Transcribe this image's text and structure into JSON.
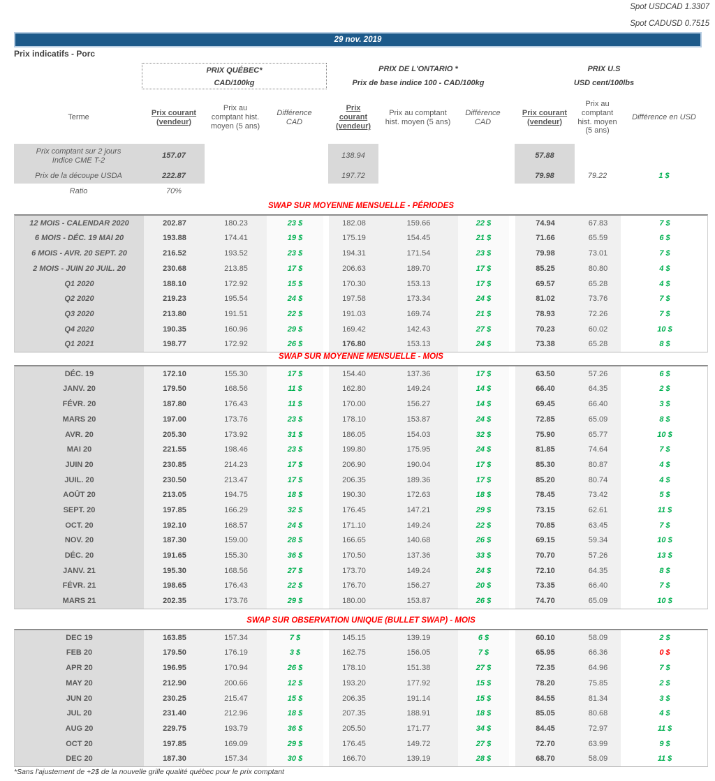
{
  "colors": {
    "header_bar_blue": "#1d5a8a",
    "positive_green": "#00b050",
    "negative_red": "#ff0000",
    "section_title_red": "#ff0000",
    "table_text_gray": "#595959",
    "terme_column_gray": "#dcdcdc",
    "price_column_gray": "#f0f0f0"
  },
  "topbar": {
    "spot_usdcad": "Spot USDCAD 1.3307",
    "spot_cadusd": "Spot CADUSD 0.7515",
    "date": "29 nov. 2019"
  },
  "page_title": "Prix indicatifs - Porc",
  "groups": {
    "quebec": {
      "title": "PRIX QUÉBEC*",
      "subtitle": "CAD/100kg"
    },
    "ontario": {
      "title": "PRIX DE L'ONTARIO *",
      "subtitle": "Prix de base indice 100 - CAD/100kg"
    },
    "us": {
      "title": "PRIX U.S",
      "subtitle": "USD cent/100lbs"
    }
  },
  "columns": {
    "terme": "Terme",
    "prix_courant": "Prix courant (vendeur)",
    "prix_comptant_hist": "Prix au comptant hist. moyen (5 ans)",
    "difference_cad": "Différence CAD",
    "difference_usd": "Différence en USD"
  },
  "spot_section": {
    "cme_row": {
      "label_line1": "Prix comptant sur 2 jours",
      "label_line2": "Indice CME T-2",
      "quebec": "157.07",
      "ontario": "138.94",
      "us": "57.88"
    },
    "usda_row": {
      "label": "Prix de la découpe USDA",
      "quebec": "222.87",
      "ontario": "197.72",
      "us": "79.98",
      "us_hist": "79.22",
      "us_diff": "1 $"
    },
    "ratio_row": {
      "label": "Ratio",
      "value": "70%"
    }
  },
  "sections": [
    {
      "title": "SWAP SUR MOYENNE MENSUELLE - PÉRIODES",
      "italic_terme": true,
      "rows": [
        {
          "terme": "12 MOIS - CALENDAR 2020",
          "qc": [
            "202.87",
            "180.23",
            "23 $"
          ],
          "on": [
            "182.08",
            "159.66",
            "22 $"
          ],
          "us": [
            "74.94",
            "67.83",
            "7 $"
          ]
        },
        {
          "terme": "6 MOIS -  DÉC. 19 MAI 20",
          "qc": [
            "193.88",
            "174.41",
            "19 $"
          ],
          "on": [
            "175.19",
            "154.45",
            "21 $"
          ],
          "us": [
            "71.66",
            "65.59",
            "6 $"
          ]
        },
        {
          "terme": "6 MOIS -  AVR. 20 SEPT. 20",
          "qc": [
            "216.52",
            "193.52",
            "23 $"
          ],
          "on": [
            "194.31",
            "171.54",
            "23 $"
          ],
          "us": [
            "79.98",
            "73.01",
            "7 $"
          ]
        },
        {
          "terme": "2 MOIS -  JUIN 20  JUIL. 20",
          "qc": [
            "230.68",
            "213.85",
            "17 $"
          ],
          "on": [
            "206.63",
            "189.70",
            "17 $"
          ],
          "us": [
            "85.25",
            "80.80",
            "4 $"
          ]
        },
        {
          "terme": "Q1 2020",
          "qc": [
            "188.10",
            "172.92",
            "15 $"
          ],
          "on": [
            "170.30",
            "153.13",
            "17 $"
          ],
          "us": [
            "69.57",
            "65.28",
            "4 $"
          ]
        },
        {
          "terme": "Q2 2020",
          "qc": [
            "219.23",
            "195.54",
            "24 $"
          ],
          "on": [
            "197.58",
            "173.34",
            "24 $"
          ],
          "us": [
            "81.02",
            "73.76",
            "7 $"
          ]
        },
        {
          "terme": "Q3 2020",
          "qc": [
            "213.80",
            "191.51",
            "22 $"
          ],
          "on": [
            "191.03",
            "169.74",
            "21 $"
          ],
          "us": [
            "78.93",
            "72.26",
            "7 $"
          ]
        },
        {
          "terme": "Q4 2020",
          "qc": [
            "190.35",
            "160.96",
            "29 $"
          ],
          "on": [
            "169.42",
            "142.43",
            "27 $"
          ],
          "us": [
            "70.23",
            "60.02",
            "10 $"
          ]
        },
        {
          "terme": "Q1 2021",
          "qc": [
            "198.77",
            "172.92",
            "26 $"
          ],
          "on": [
            "176.80",
            "153.13",
            "24 $"
          ],
          "us": [
            "73.38",
            "65.28",
            "8 $"
          ],
          "onBold": true
        }
      ]
    },
    {
      "title": "SWAP SUR MOYENNE MENSUELLE - MOIS",
      "italic_terme": false,
      "rows": [
        {
          "terme": "DÉC. 19",
          "qc": [
            "172.10",
            "155.30",
            "17 $"
          ],
          "on": [
            "154.40",
            "137.36",
            "17 $"
          ],
          "us": [
            "63.50",
            "57.26",
            "6 $"
          ]
        },
        {
          "terme": "JANV. 20",
          "qc": [
            "179.50",
            "168.56",
            "11 $"
          ],
          "on": [
            "162.80",
            "149.24",
            "14 $"
          ],
          "us": [
            "66.40",
            "64.35",
            "2 $"
          ]
        },
        {
          "terme": "FÉVR. 20",
          "qc": [
            "187.80",
            "176.43",
            "11 $"
          ],
          "on": [
            "170.00",
            "156.27",
            "14 $"
          ],
          "us": [
            "69.45",
            "66.40",
            "3 $"
          ]
        },
        {
          "terme": "MARS 20",
          "qc": [
            "197.00",
            "173.76",
            "23 $"
          ],
          "on": [
            "178.10",
            "153.87",
            "24 $"
          ],
          "us": [
            "72.85",
            "65.09",
            "8 $"
          ]
        },
        {
          "terme": "AVR. 20",
          "qc": [
            "205.30",
            "173.92",
            "31 $"
          ],
          "on": [
            "186.05",
            "154.03",
            "32 $"
          ],
          "us": [
            "75.90",
            "65.77",
            "10 $"
          ]
        },
        {
          "terme": "MAI 20",
          "qc": [
            "221.55",
            "198.46",
            "23 $"
          ],
          "on": [
            "199.80",
            "175.95",
            "24 $"
          ],
          "us": [
            "81.85",
            "74.64",
            "7 $"
          ]
        },
        {
          "terme": "JUIN 20",
          "qc": [
            "230.85",
            "214.23",
            "17 $"
          ],
          "on": [
            "206.90",
            "190.04",
            "17 $"
          ],
          "us": [
            "85.30",
            "80.87",
            "4 $"
          ]
        },
        {
          "terme": "JUIL. 20",
          "qc": [
            "230.50",
            "213.47",
            "17 $"
          ],
          "on": [
            "206.35",
            "189.36",
            "17 $"
          ],
          "us": [
            "85.20",
            "80.74",
            "4 $"
          ]
        },
        {
          "terme": "AOÛT 20",
          "qc": [
            "213.05",
            "194.75",
            "18 $"
          ],
          "on": [
            "190.30",
            "172.63",
            "18 $"
          ],
          "us": [
            "78.45",
            "73.42",
            "5 $"
          ]
        },
        {
          "terme": "SEPT. 20",
          "qc": [
            "197.85",
            "166.29",
            "32 $"
          ],
          "on": [
            "176.45",
            "147.21",
            "29 $"
          ],
          "us": [
            "73.15",
            "62.61",
            "11 $"
          ]
        },
        {
          "terme": "OCT. 20",
          "qc": [
            "192.10",
            "168.57",
            "24 $"
          ],
          "on": [
            "171.10",
            "149.24",
            "22 $"
          ],
          "us": [
            "70.85",
            "63.45",
            "7 $"
          ]
        },
        {
          "terme": "NOV. 20",
          "qc": [
            "187.30",
            "159.00",
            "28 $"
          ],
          "on": [
            "166.65",
            "140.68",
            "26 $"
          ],
          "us": [
            "69.15",
            "59.34",
            "10 $"
          ]
        },
        {
          "terme": "DÉC. 20",
          "qc": [
            "191.65",
            "155.30",
            "36 $"
          ],
          "on": [
            "170.50",
            "137.36",
            "33 $"
          ],
          "us": [
            "70.70",
            "57.26",
            "13 $"
          ]
        },
        {
          "terme": "JANV. 21",
          "qc": [
            "195.30",
            "168.56",
            "27 $"
          ],
          "on": [
            "173.70",
            "149.24",
            "24 $"
          ],
          "us": [
            "72.10",
            "64.35",
            "8 $"
          ]
        },
        {
          "terme": "FÉVR. 21",
          "qc": [
            "198.65",
            "176.43",
            "22 $"
          ],
          "on": [
            "176.70",
            "156.27",
            "20 $"
          ],
          "us": [
            "73.35",
            "66.40",
            "7 $"
          ]
        },
        {
          "terme": "MARS 21",
          "qc": [
            "202.35",
            "173.76",
            "29 $"
          ],
          "on": [
            "180.00",
            "153.87",
            "26 $"
          ],
          "us": [
            "74.70",
            "65.09",
            "10 $"
          ]
        }
      ]
    },
    {
      "title": "SWAP SUR OBSERVATION UNIQUE (BULLET SWAP) - MOIS",
      "italic_terme": false,
      "rows": [
        {
          "terme": "DEC 19",
          "qc": [
            "163.85",
            "157.34",
            "7 $"
          ],
          "on": [
            "145.15",
            "139.19",
            "6 $"
          ],
          "us": [
            "60.10",
            "58.09",
            "2 $"
          ]
        },
        {
          "terme": "FEB 20",
          "qc": [
            "179.50",
            "176.19",
            "3 $"
          ],
          "on": [
            "162.75",
            "156.05",
            "7 $"
          ],
          "us": [
            "65.95",
            "66.36",
            "0 $"
          ],
          "usRed": true
        },
        {
          "terme": "APR 20",
          "qc": [
            "196.95",
            "170.94",
            "26 $"
          ],
          "on": [
            "178.10",
            "151.38",
            "27 $"
          ],
          "us": [
            "72.35",
            "64.96",
            "7 $"
          ]
        },
        {
          "terme": "MAY 20",
          "qc": [
            "212.90",
            "200.66",
            "12 $"
          ],
          "on": [
            "193.20",
            "177.92",
            "15 $"
          ],
          "us": [
            "78.20",
            "75.85",
            "2 $"
          ]
        },
        {
          "terme": "JUN 20",
          "qc": [
            "230.25",
            "215.47",
            "15 $"
          ],
          "on": [
            "206.35",
            "191.14",
            "15 $"
          ],
          "us": [
            "84.55",
            "81.34",
            "3 $"
          ]
        },
        {
          "terme": "JUL 20",
          "qc": [
            "231.40",
            "212.96",
            "18 $"
          ],
          "on": [
            "207.35",
            "188.91",
            "18 $"
          ],
          "us": [
            "85.05",
            "80.68",
            "4 $"
          ]
        },
        {
          "terme": "AUG 20",
          "qc": [
            "229.75",
            "193.79",
            "36 $"
          ],
          "on": [
            "205.50",
            "171.77",
            "34 $"
          ],
          "us": [
            "84.45",
            "72.97",
            "11 $"
          ]
        },
        {
          "terme": "OCT 20",
          "qc": [
            "197.85",
            "169.09",
            "29 $"
          ],
          "on": [
            "176.45",
            "149.72",
            "27 $"
          ],
          "us": [
            "72.70",
            "63.99",
            "9 $"
          ]
        },
        {
          "terme": "DEC 20",
          "qc": [
            "187.30",
            "157.34",
            "30 $"
          ],
          "on": [
            "166.70",
            "139.19",
            "28 $"
          ],
          "us": [
            "68.70",
            "58.09",
            "11 $"
          ]
        }
      ]
    }
  ],
  "footnote": "*Sans l'ajustement de +2$ de la nouvelle grille qualité québec pour le prix comptant"
}
